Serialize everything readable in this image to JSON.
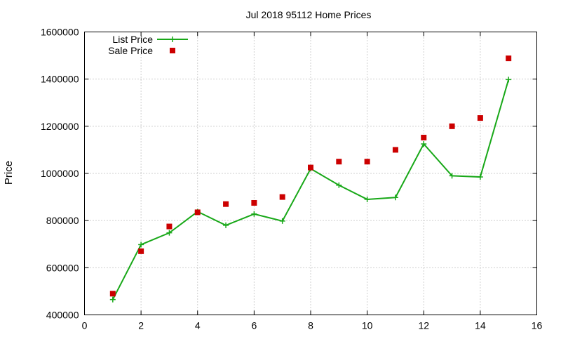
{
  "chart_data": {
    "type": "line",
    "title": "Jul 2018 95112 Home Prices",
    "xlabel": "",
    "ylabel": "Price",
    "xlim": [
      0,
      16
    ],
    "ylim": [
      400000,
      1600000
    ],
    "xticks": [
      0,
      2,
      4,
      6,
      8,
      10,
      12,
      14,
      16
    ],
    "yticks": [
      400000,
      600000,
      800000,
      1000000,
      1200000,
      1400000,
      1600000
    ],
    "grid": true,
    "legend_position": "top-left",
    "series": [
      {
        "name": "List Price",
        "style": "line+cross",
        "color": "#18a818",
        "x": [
          1,
          2,
          3,
          4,
          5,
          6,
          7,
          8,
          9,
          10,
          11,
          12,
          13,
          14,
          15
        ],
        "y": [
          465000,
          698000,
          748000,
          838000,
          780000,
          828000,
          798000,
          1020000,
          950000,
          890000,
          898000,
          1125000,
          990000,
          985000,
          1398000
        ]
      },
      {
        "name": "Sale Price",
        "style": "square",
        "color": "#cc0000",
        "x": [
          1,
          2,
          3,
          4,
          5,
          6,
          7,
          8,
          9,
          10,
          11,
          12,
          13,
          14,
          15
        ],
        "y": [
          490000,
          670000,
          775000,
          835000,
          870000,
          875000,
          900000,
          1025000,
          1050000,
          1050000,
          1100000,
          1152000,
          1200000,
          1235000,
          1488000
        ]
      }
    ]
  }
}
